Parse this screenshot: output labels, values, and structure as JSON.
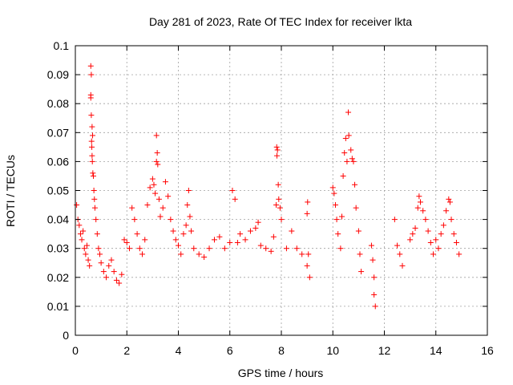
{
  "chart_data": {
    "type": "scatter",
    "title": "Day 281 of 2023, Rate Of TEC Index for receiver lkta",
    "xlabel": "GPS time / hours",
    "ylabel": "ROTI / TECUs",
    "xlim": [
      0,
      16
    ],
    "ylim": [
      0,
      0.1
    ],
    "x_ticks": [
      "0",
      "2",
      "4",
      "6",
      "8",
      "10",
      "12",
      "14",
      "16"
    ],
    "y_ticks": [
      "0",
      "0.01",
      "0.02",
      "0.03",
      "0.04",
      "0.05",
      "0.06",
      "0.07",
      "0.08",
      "0.09",
      "0.1"
    ],
    "grid": true,
    "marker": "+",
    "color": "#ff0000",
    "series": [
      {
        "name": "ROTI",
        "points": [
          [
            0.05,
            0.045
          ],
          [
            0.1,
            0.04
          ],
          [
            0.15,
            0.038
          ],
          [
            0.2,
            0.035
          ],
          [
            0.25,
            0.033
          ],
          [
            0.3,
            0.036
          ],
          [
            0.35,
            0.03
          ],
          [
            0.4,
            0.028
          ],
          [
            0.45,
            0.031
          ],
          [
            0.5,
            0.026
          ],
          [
            0.55,
            0.024
          ],
          [
            0.6,
            0.093
          ],
          [
            0.62,
            0.09
          ],
          [
            0.6,
            0.083
          ],
          [
            0.6,
            0.082
          ],
          [
            0.62,
            0.076
          ],
          [
            0.65,
            0.072
          ],
          [
            0.67,
            0.069
          ],
          [
            0.63,
            0.067
          ],
          [
            0.64,
            0.065
          ],
          [
            0.65,
            0.062
          ],
          [
            0.66,
            0.06
          ],
          [
            0.68,
            0.056
          ],
          [
            0.7,
            0.055
          ],
          [
            0.72,
            0.05
          ],
          [
            0.74,
            0.047
          ],
          [
            0.76,
            0.044
          ],
          [
            0.8,
            0.04
          ],
          [
            0.85,
            0.035
          ],
          [
            0.9,
            0.03
          ],
          [
            0.95,
            0.028
          ],
          [
            1.0,
            0.025
          ],
          [
            1.1,
            0.022
          ],
          [
            1.2,
            0.02
          ],
          [
            1.3,
            0.024
          ],
          [
            1.4,
            0.026
          ],
          [
            1.5,
            0.022
          ],
          [
            1.6,
            0.019
          ],
          [
            1.7,
            0.018
          ],
          [
            1.8,
            0.021
          ],
          [
            1.9,
            0.033
          ],
          [
            2.0,
            0.032
          ],
          [
            2.1,
            0.03
          ],
          [
            2.2,
            0.044
          ],
          [
            2.3,
            0.04
          ],
          [
            2.4,
            0.035
          ],
          [
            2.5,
            0.03
          ],
          [
            2.6,
            0.028
          ],
          [
            2.7,
            0.033
          ],
          [
            2.8,
            0.045
          ],
          [
            2.9,
            0.051
          ],
          [
            3.0,
            0.054
          ],
          [
            3.05,
            0.052
          ],
          [
            3.1,
            0.049
          ],
          [
            3.15,
            0.069
          ],
          [
            3.18,
            0.063
          ],
          [
            3.15,
            0.06
          ],
          [
            3.2,
            0.059
          ],
          [
            3.25,
            0.047
          ],
          [
            3.3,
            0.041
          ],
          [
            3.4,
            0.044
          ],
          [
            3.5,
            0.053
          ],
          [
            3.6,
            0.048
          ],
          [
            3.7,
            0.04
          ],
          [
            3.8,
            0.036
          ],
          [
            3.9,
            0.033
          ],
          [
            4.0,
            0.031
          ],
          [
            4.1,
            0.028
          ],
          [
            4.2,
            0.035
          ],
          [
            4.3,
            0.038
          ],
          [
            4.35,
            0.045
          ],
          [
            4.4,
            0.05
          ],
          [
            4.45,
            0.041
          ],
          [
            4.5,
            0.036
          ],
          [
            4.6,
            0.03
          ],
          [
            4.8,
            0.028
          ],
          [
            5.0,
            0.027
          ],
          [
            5.2,
            0.03
          ],
          [
            5.4,
            0.033
          ],
          [
            5.6,
            0.034
          ],
          [
            5.8,
            0.03
          ],
          [
            6.0,
            0.032
          ],
          [
            6.1,
            0.05
          ],
          [
            6.2,
            0.047
          ],
          [
            6.3,
            0.032
          ],
          [
            6.4,
            0.035
          ],
          [
            6.6,
            0.033
          ],
          [
            6.8,
            0.036
          ],
          [
            7.0,
            0.037
          ],
          [
            7.1,
            0.039
          ],
          [
            7.2,
            0.031
          ],
          [
            7.4,
            0.03
          ],
          [
            7.6,
            0.029
          ],
          [
            7.7,
            0.034
          ],
          [
            7.8,
            0.045
          ],
          [
            7.82,
            0.065
          ],
          [
            7.85,
            0.064
          ],
          [
            7.83,
            0.062
          ],
          [
            7.88,
            0.052
          ],
          [
            7.9,
            0.047
          ],
          [
            7.95,
            0.044
          ],
          [
            8.0,
            0.04
          ],
          [
            8.2,
            0.03
          ],
          [
            8.4,
            0.036
          ],
          [
            8.6,
            0.03
          ],
          [
            8.8,
            0.028
          ],
          [
            9.0,
            0.042
          ],
          [
            9.02,
            0.046
          ],
          [
            9.05,
            0.028
          ],
          [
            9.0,
            0.024
          ],
          [
            9.1,
            0.02
          ],
          [
            10.0,
            0.051
          ],
          [
            10.05,
            0.049
          ],
          [
            10.1,
            0.045
          ],
          [
            10.15,
            0.04
          ],
          [
            10.2,
            0.035
          ],
          [
            10.3,
            0.03
          ],
          [
            10.35,
            0.041
          ],
          [
            10.4,
            0.055
          ],
          [
            10.45,
            0.063
          ],
          [
            10.5,
            0.068
          ],
          [
            10.55,
            0.06
          ],
          [
            10.6,
            0.077
          ],
          [
            10.62,
            0.069
          ],
          [
            10.7,
            0.064
          ],
          [
            10.75,
            0.061
          ],
          [
            10.8,
            0.06
          ],
          [
            10.85,
            0.052
          ],
          [
            10.9,
            0.044
          ],
          [
            11.0,
            0.036
          ],
          [
            11.05,
            0.028
          ],
          [
            11.1,
            0.022
          ],
          [
            11.5,
            0.031
          ],
          [
            11.55,
            0.026
          ],
          [
            11.6,
            0.02
          ],
          [
            11.6,
            0.014
          ],
          [
            11.65,
            0.01
          ],
          [
            12.4,
            0.04
          ],
          [
            12.5,
            0.031
          ],
          [
            12.6,
            0.028
          ],
          [
            12.7,
            0.024
          ],
          [
            13.0,
            0.033
          ],
          [
            13.1,
            0.035
          ],
          [
            13.2,
            0.037
          ],
          [
            13.3,
            0.044
          ],
          [
            13.35,
            0.048
          ],
          [
            13.4,
            0.046
          ],
          [
            13.5,
            0.043
          ],
          [
            13.6,
            0.04
          ],
          [
            13.7,
            0.036
          ],
          [
            13.8,
            0.032
          ],
          [
            13.9,
            0.028
          ],
          [
            14.0,
            0.033
          ],
          [
            14.1,
            0.03
          ],
          [
            14.2,
            0.035
          ],
          [
            14.3,
            0.038
          ],
          [
            14.4,
            0.043
          ],
          [
            14.5,
            0.047
          ],
          [
            14.55,
            0.046
          ],
          [
            14.6,
            0.04
          ],
          [
            14.7,
            0.035
          ],
          [
            14.8,
            0.032
          ],
          [
            14.9,
            0.028
          ]
        ]
      }
    ]
  }
}
